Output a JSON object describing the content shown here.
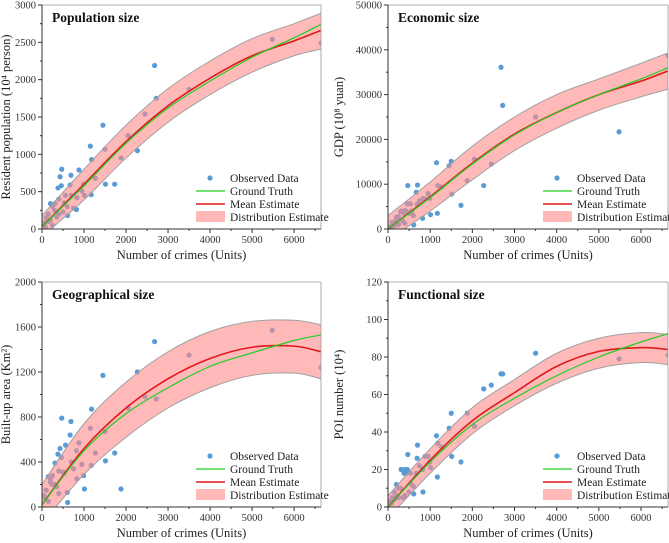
{
  "legend": {
    "observed": "Observed Data",
    "ground_truth": "Ground Truth",
    "mean": "Mean Estimate",
    "distribution": "Distribution Estimate"
  },
  "colors": {
    "observed": "#5b9bd5",
    "ground_truth": "#22cc22",
    "mean": "#e0191b",
    "distribution": "#ff8a8a",
    "band_edge": "#a0a0a0"
  },
  "chart_data": [
    {
      "type": "scatter",
      "title": "Population size",
      "xlabel": "Number of crimes (Units)",
      "ylabel": "Resident population (10⁴ person)",
      "xlim": [
        0,
        6640
      ],
      "ylim": [
        0,
        3000
      ],
      "xticks": [
        0,
        1000,
        2000,
        3000,
        4000,
        5000,
        6000
      ],
      "yticks": [
        0,
        500,
        1000,
        1500,
        2000,
        2500,
        3000
      ],
      "legend_position": "bottom-right",
      "observed_x": [
        2680,
        2720,
        3500,
        2450,
        5480,
        6640,
        1450,
        1150,
        1500,
        2050,
        2270,
        1880,
        1180,
        1510,
        1730,
        1270,
        1170,
        470,
        430,
        690,
        880,
        460,
        380,
        670,
        950,
        990,
        1010,
        830,
        820,
        610,
        750,
        310,
        200,
        400,
        530,
        250,
        150,
        300,
        100,
        50,
        200,
        350,
        600,
        500,
        150,
        250,
        80,
        400,
        700,
        560
      ],
      "observed_y": [
        2190,
        1750,
        1870,
        1540,
        2540,
        2490,
        1390,
        1110,
        1070,
        1250,
        1050,
        950,
        930,
        600,
        600,
        680,
        460,
        800,
        700,
        720,
        790,
        580,
        550,
        590,
        510,
        600,
        450,
        420,
        260,
        180,
        280,
        340,
        340,
        400,
        350,
        300,
        200,
        250,
        150,
        80,
        120,
        160,
        300,
        230,
        100,
        50,
        30,
        200,
        450,
        450
      ],
      "curve_x": [
        0,
        1000,
        2000,
        3000,
        4000,
        5000,
        6000,
        6640
      ],
      "ground_truth": [
        30,
        580,
        1150,
        1620,
        1980,
        2300,
        2560,
        2740
      ],
      "mean_estimate": [
        30,
        600,
        1170,
        1650,
        2020,
        2320,
        2520,
        2660
      ],
      "band_lower": [
        -100,
        390,
        950,
        1430,
        1800,
        2100,
        2320,
        2410
      ],
      "band_upper": [
        180,
        800,
        1390,
        1880,
        2250,
        2550,
        2750,
        2890
      ]
    },
    {
      "type": "scatter",
      "title": "Economic size",
      "xlabel": "Number of crimes (Units)",
      "ylabel": "GDP (10⁸ yuan)",
      "xlim": [
        0,
        6640
      ],
      "ylim": [
        0,
        50000
      ],
      "xticks": [
        0,
        1000,
        2000,
        3000,
        4000,
        5000,
        6000
      ],
      "yticks": [
        0,
        10000,
        20000,
        30000,
        40000,
        50000
      ],
      "legend_position": "bottom-right",
      "observed_x": [
        2680,
        2720,
        3500,
        2450,
        5480,
        6640,
        1450,
        1150,
        1500,
        2050,
        2270,
        1880,
        1180,
        1510,
        1730,
        1270,
        1170,
        470,
        430,
        690,
        880,
        460,
        380,
        670,
        950,
        990,
        1010,
        830,
        820,
        610,
        750,
        310,
        200,
        400,
        530,
        250,
        150,
        300,
        100,
        50,
        200,
        350,
        600,
        500,
        150,
        250,
        80,
        400,
        700,
        560
      ],
      "observed_y": [
        36100,
        27600,
        25000,
        14500,
        21700,
        38700,
        14100,
        14800,
        15100,
        15600,
        9700,
        10800,
        9700,
        7800,
        5300,
        9400,
        3500,
        9700,
        4000,
        5500,
        6700,
        5600,
        3500,
        8200,
        7900,
        6800,
        3200,
        6800,
        2400,
        900,
        6300,
        4000,
        2600,
        4100,
        5600,
        2800,
        1500,
        3900,
        1500,
        500,
        2200,
        1800,
        3000,
        3500,
        800,
        1000,
        300,
        1300,
        9800,
        4000
      ],
      "curve_x": [
        0,
        1000,
        2000,
        3000,
        4000,
        5000,
        6000,
        6640
      ],
      "ground_truth": [
        0,
        7000,
        14500,
        21000,
        26000,
        30000,
        33500,
        36000
      ],
      "mean_estimate": [
        0,
        7200,
        14700,
        21200,
        26000,
        30000,
        33000,
        35300
      ],
      "band_lower": [
        -2500,
        4000,
        11000,
        17500,
        22500,
        26500,
        29500,
        31200
      ],
      "band_upper": [
        3000,
        10500,
        18500,
        25000,
        30000,
        33500,
        37000,
        39300
      ]
    },
    {
      "type": "scatter",
      "title": "Geographical size",
      "xlabel": "Number of crimes (Units)",
      "ylabel": "Built-up area (Km²)",
      "xlim": [
        0,
        6640
      ],
      "ylim": [
        0,
        2000
      ],
      "xticks": [
        0,
        1000,
        2000,
        3000,
        4000,
        5000,
        6000
      ],
      "yticks": [
        0,
        400,
        800,
        1200,
        1600,
        2000
      ],
      "legend_position": "bottom-right",
      "observed_x": [
        2680,
        2720,
        3500,
        2450,
        5480,
        6640,
        1450,
        1150,
        1500,
        2050,
        2270,
        1880,
        1180,
        1510,
        1730,
        1270,
        1170,
        470,
        430,
        690,
        880,
        460,
        380,
        670,
        950,
        990,
        1010,
        830,
        820,
        610,
        750,
        310,
        200,
        400,
        530,
        250,
        150,
        300,
        100,
        50,
        200,
        350,
        600,
        500,
        150,
        250,
        80,
        400,
        700,
        560
      ],
      "observed_y": [
        1470,
        960,
        1350,
        980,
        1570,
        1240,
        1170,
        700,
        670,
        880,
        1200,
        160,
        870,
        410,
        480,
        480,
        370,
        790,
        520,
        760,
        570,
        440,
        470,
        640,
        380,
        280,
        160,
        250,
        500,
        40,
        340,
        390,
        250,
        320,
        300,
        280,
        270,
        200,
        150,
        100,
        220,
        180,
        130,
        310,
        50,
        200,
        80,
        120,
        400,
        550
      ],
      "curve_x": [
        0,
        1000,
        2000,
        3000,
        4000,
        5000,
        6000,
        6640
      ],
      "ground_truth": [
        20,
        500,
        830,
        1060,
        1250,
        1370,
        1480,
        1530
      ],
      "mean_estimate": [
        20,
        520,
        880,
        1140,
        1320,
        1420,
        1430,
        1380
      ],
      "band_lower": [
        -150,
        290,
        620,
        880,
        1060,
        1170,
        1190,
        1140
      ],
      "band_upper": [
        200,
        740,
        1110,
        1380,
        1560,
        1650,
        1660,
        1620
      ]
    },
    {
      "type": "scatter",
      "title": "Functional size",
      "xlabel": "Number of crimes (Units)",
      "ylabel": "POI number (10⁴)",
      "xlim": [
        0,
        6640
      ],
      "ylim": [
        0,
        120
      ],
      "xticks": [
        0,
        1000,
        2000,
        3000,
        4000,
        5000,
        6000
      ],
      "yticks": [
        0,
        20,
        40,
        60,
        80,
        100,
        120
      ],
      "legend_position": "bottom-right",
      "observed_x": [
        2680,
        2720,
        3500,
        2450,
        5480,
        6640,
        1450,
        1150,
        1500,
        2050,
        2270,
        1880,
        1180,
        1510,
        1730,
        1270,
        1170,
        470,
        430,
        690,
        880,
        460,
        380,
        670,
        950,
        990,
        1010,
        830,
        820,
        610,
        750,
        310,
        200,
        400,
        530,
        250,
        150,
        300,
        100,
        50,
        200,
        350,
        600,
        500,
        150,
        250,
        80,
        400,
        700,
        560
      ],
      "observed_y": [
        71,
        71,
        82,
        65,
        79,
        81,
        42,
        38,
        50,
        43,
        63,
        50,
        34,
        27,
        24,
        32,
        16,
        28,
        18,
        26,
        27,
        20,
        18,
        18,
        27,
        24,
        21,
        8,
        20,
        7,
        22,
        20,
        12,
        20,
        18,
        10,
        8,
        10,
        5,
        3,
        6,
        5,
        11,
        8,
        4,
        5,
        2,
        6,
        33,
        12
      ],
      "curve_x": [
        0,
        1000,
        2000,
        3000,
        4000,
        5000,
        6000,
        6640
      ],
      "ground_truth": [
        0,
        24,
        44,
        58,
        70,
        80,
        88,
        92.5
      ],
      "mean_estimate": [
        0,
        25,
        46,
        61,
        75,
        83,
        85,
        84
      ],
      "band_lower": [
        -6,
        18,
        39,
        54,
        66,
        74,
        77,
        76
      ],
      "band_upper": [
        6,
        31,
        53,
        68,
        82,
        90,
        93,
        92
      ]
    }
  ]
}
